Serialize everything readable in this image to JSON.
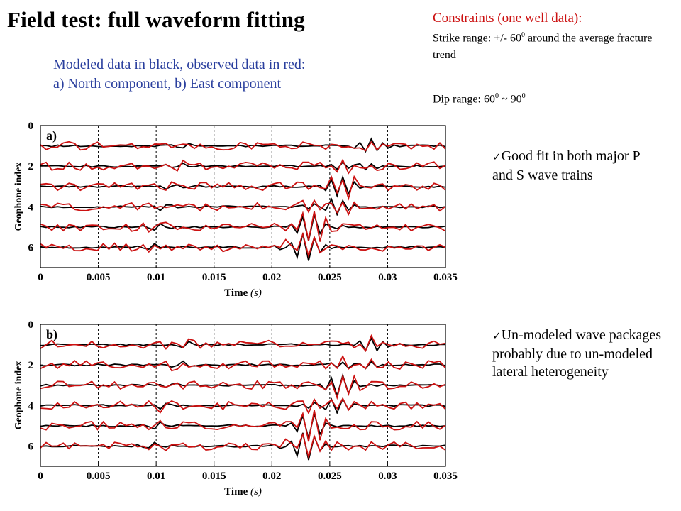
{
  "title": "Field test: full waveform fitting",
  "subtitle": {
    "line1": "Modeled data in black, observed data in red:",
    "line2": "a) North component, b) East component"
  },
  "constraints": {
    "heading": "Constraints (one well data):",
    "strike_prefix": "Strike range: +/- 60",
    "strike_sup": "0",
    "strike_suffix": " around  the average fracture trend",
    "dip_prefix": "Dip range: 60",
    "dip_sup1": "0",
    "dip_mid": " ~ 90",
    "dip_sup2": "0"
  },
  "bullets": [
    {
      "check": "✓",
      "text": "Good fit in both major P and S wave trains"
    },
    {
      "check": "✓",
      "text": "Un-modeled wave packages probably due to un-modeled lateral heterogeneity"
    }
  ],
  "colors": {
    "modeled": "#000000",
    "observed": "#cc1111",
    "subtitle": "#2a3f9e"
  },
  "chart_data": [
    {
      "type": "line",
      "panel_label": "a)",
      "xlabel_main": "Time ",
      "xlabel_unit": "(s)",
      "ylabel": "Geophone index",
      "xlim": [
        0,
        0.035
      ],
      "ylim": [
        7,
        0
      ],
      "x_ticks": [
        "0",
        "0.005",
        "0.01",
        "0.015",
        "0.02",
        "0.025",
        "0.03",
        "0.035"
      ],
      "y_ticks": [
        "0",
        "2",
        "4",
        "6"
      ],
      "grid": "vertical dashed",
      "traces": [
        1,
        2,
        3,
        4,
        5,
        6
      ],
      "series": [
        {
          "color": "#000000"
        },
        {
          "color": "#cc1111"
        }
      ]
    },
    {
      "type": "line",
      "panel_label": "b)",
      "xlabel_main": "Time ",
      "xlabel_unit": "(s)",
      "ylabel": "Geophone index",
      "xlim": [
        0,
        0.035
      ],
      "ylim": [
        7,
        0
      ],
      "x_ticks": [
        "0",
        "0.005",
        "0.01",
        "0.015",
        "0.02",
        "0.025",
        "0.03",
        "0.035"
      ],
      "y_ticks": [
        "0",
        "2",
        "4",
        "6"
      ],
      "grid": "vertical dashed",
      "traces": [
        1,
        2,
        3,
        4,
        5,
        6
      ],
      "series": [
        {
          "color": "#000000"
        },
        {
          "color": "#cc1111"
        }
      ]
    }
  ]
}
